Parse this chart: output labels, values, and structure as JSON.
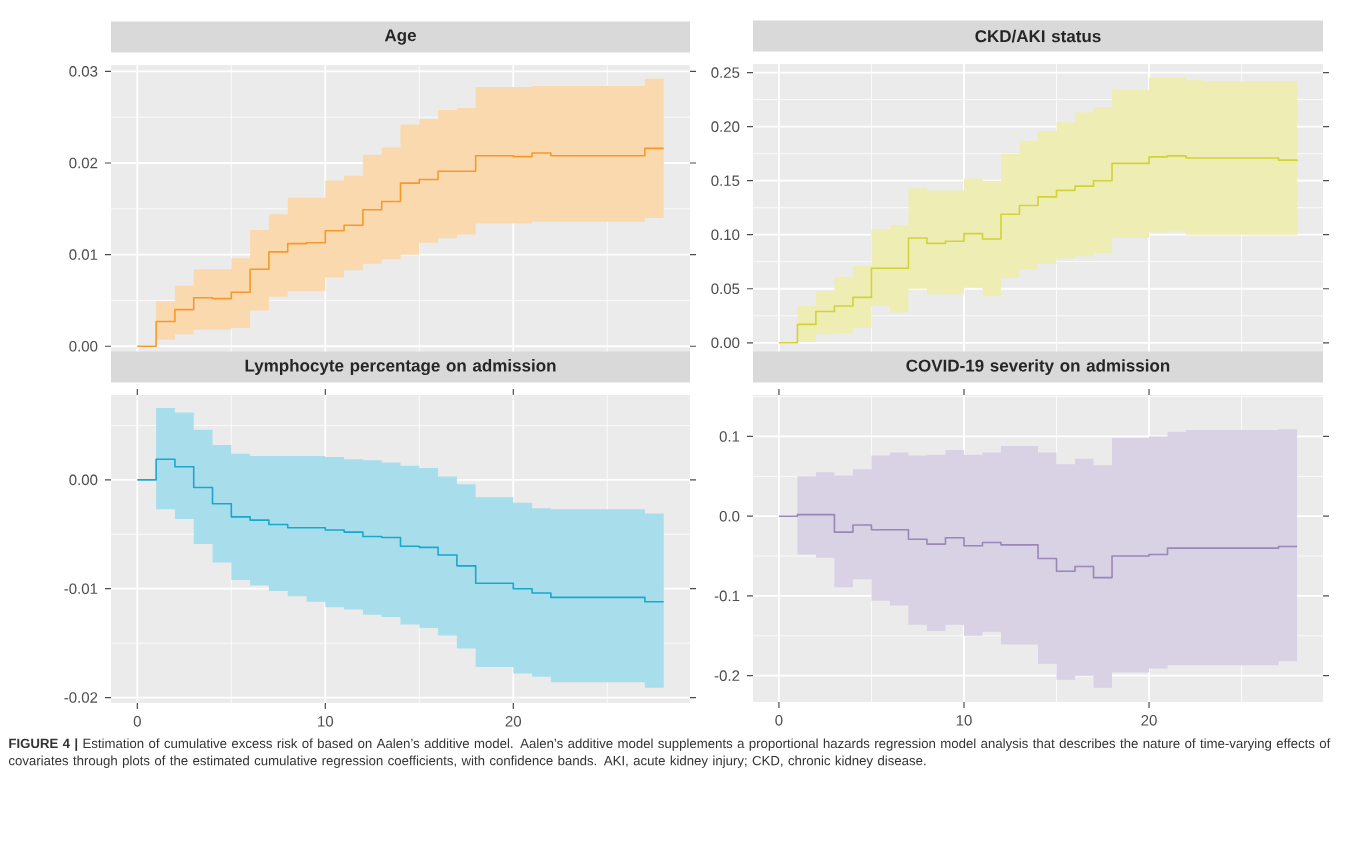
{
  "chart_data": [
    {
      "type": "step",
      "title": "Age",
      "x": [
        0,
        1,
        2,
        3,
        4,
        5,
        6,
        7,
        8,
        9,
        10,
        11,
        12,
        13,
        14,
        15,
        16,
        17,
        18,
        19,
        20,
        21,
        22,
        23,
        24,
        25,
        26,
        27,
        28
      ],
      "series": [
        {
          "color": "#f59a2a",
          "values": [
            0,
            0.0027,
            0.004,
            0.0053,
            0.0052,
            0.0059,
            0.0084,
            0.0103,
            0.0112,
            0.0113,
            0.0126,
            0.0132,
            0.0149,
            0.0158,
            0.0178,
            0.0182,
            0.0191,
            0.0191,
            0.0208,
            0.0208,
            0.0207,
            0.0211,
            0.0208,
            0.0208,
            0.0208,
            0.0208,
            0.0208,
            0.0216,
            0.0216
          ],
          "upper": [
            0,
            0.0049,
            0.0066,
            0.0084,
            0.0084,
            0.0096,
            0.0127,
            0.0144,
            0.0162,
            0.0162,
            0.0181,
            0.0186,
            0.0209,
            0.0217,
            0.0242,
            0.0248,
            0.0258,
            0.026,
            0.0283,
            0.0283,
            0.0283,
            0.0284,
            0.0284,
            0.0284,
            0.0284,
            0.0284,
            0.0284,
            0.0292,
            0.0292
          ],
          "lower": [
            0,
            0.0007,
            0.0013,
            0.0018,
            0.0018,
            0.002,
            0.0039,
            0.0054,
            0.006,
            0.006,
            0.0075,
            0.0083,
            0.009,
            0.0095,
            0.01,
            0.0113,
            0.0118,
            0.0122,
            0.0134,
            0.0134,
            0.0134,
            0.0136,
            0.0136,
            0.0136,
            0.0136,
            0.0136,
            0.0136,
            0.014,
            0.014
          ]
        }
      ],
      "xlim": [
        -1.4,
        29.4
      ],
      "xticks": [
        0,
        10,
        20
      ],
      "ylim": [
        -0.0015,
        0.0307
      ],
      "yticks": [
        {
          "value": 0,
          "label": "0.00"
        },
        {
          "value": 0.01,
          "label": "0.01"
        },
        {
          "value": 0.02,
          "label": "0.02"
        },
        {
          "value": 0.03,
          "label": "0.03"
        }
      ],
      "tick_labels": "y",
      "grid": true
    },
    {
      "type": "step",
      "title": "CKD/AKI status",
      "x": [
        0,
        1,
        2,
        3,
        4,
        5,
        6,
        7,
        8,
        9,
        10,
        11,
        12,
        13,
        14,
        15,
        16,
        17,
        18,
        19,
        20,
        21,
        22,
        23,
        24,
        25,
        26,
        27,
        28
      ],
      "series": [
        {
          "color": "#d2d23a",
          "values": [
            0,
            0.017,
            0.029,
            0.034,
            0.042,
            0.069,
            0.069,
            0.097,
            0.092,
            0.094,
            0.101,
            0.096,
            0.119,
            0.127,
            0.135,
            0.141,
            0.145,
            0.15,
            0.166,
            0.166,
            0.172,
            0.173,
            0.171,
            0.171,
            0.171,
            0.171,
            0.171,
            0.169,
            0.168
          ],
          "upper": [
            0,
            0.034,
            0.048,
            0.061,
            0.071,
            0.105,
            0.109,
            0.143,
            0.141,
            0.141,
            0.152,
            0.15,
            0.175,
            0.187,
            0.196,
            0.204,
            0.213,
            0.218,
            0.234,
            0.234,
            0.245,
            0.245,
            0.243,
            0.242,
            0.242,
            0.242,
            0.242,
            0.242,
            0.242
          ],
          "lower": [
            0,
            0.001,
            0.008,
            0.009,
            0.014,
            0.034,
            0.028,
            0.05,
            0.045,
            0.045,
            0.051,
            0.043,
            0.06,
            0.068,
            0.073,
            0.078,
            0.08,
            0.083,
            0.097,
            0.097,
            0.102,
            0.103,
            0.1,
            0.1,
            0.1,
            0.1,
            0.1,
            0.1,
            0.1
          ]
        }
      ],
      "xlim": [
        -1.4,
        29.4
      ],
      "xticks": [
        0,
        10,
        20
      ],
      "ylim": [
        -0.015,
        0.258
      ],
      "yticks": [
        {
          "value": 0,
          "label": "0.00"
        },
        {
          "value": 0.05,
          "label": "0.05"
        },
        {
          "value": 0.1,
          "label": "0.10"
        },
        {
          "value": 0.15,
          "label": "0.15"
        },
        {
          "value": 0.2,
          "label": "0.20"
        },
        {
          "value": 0.25,
          "label": "0.25"
        }
      ],
      "tick_labels": "y",
      "grid": true
    },
    {
      "type": "step",
      "title": "Lymphocyte percentage on admission",
      "x": [
        0,
        1,
        2,
        3,
        4,
        5,
        6,
        7,
        8,
        9,
        10,
        11,
        12,
        13,
        14,
        15,
        16,
        17,
        18,
        19,
        20,
        21,
        22,
        23,
        24,
        25,
        26,
        27,
        28
      ],
      "series": [
        {
          "color": "#1aa7cc",
          "values": [
            0,
            0.0019,
            0.0012,
            -0.0007,
            -0.0022,
            -0.0034,
            -0.0037,
            -0.0041,
            -0.0044,
            -0.0044,
            -0.0046,
            -0.0048,
            -0.0052,
            -0.0053,
            -0.0061,
            -0.0062,
            -0.0069,
            -0.0079,
            -0.0095,
            -0.0095,
            -0.01,
            -0.0104,
            -0.0108,
            -0.0108,
            -0.0108,
            -0.0108,
            -0.0108,
            -0.0112,
            -0.0112
          ],
          "upper": [
            0,
            0.0066,
            0.0062,
            0.0046,
            0.0032,
            0.0024,
            0.0022,
            0.0022,
            0.0022,
            0.0022,
            0.0021,
            0.0019,
            0.0018,
            0.0016,
            0.0013,
            0.0011,
            0.0003,
            -0.0004,
            -0.0016,
            -0.0016,
            -0.0021,
            -0.0026,
            -0.0027,
            -0.0027,
            -0.0027,
            -0.0027,
            -0.0027,
            -0.0031,
            -0.0031
          ],
          "lower": [
            0,
            -0.0027,
            -0.0036,
            -0.0059,
            -0.0076,
            -0.0092,
            -0.0097,
            -0.0102,
            -0.0107,
            -0.0112,
            -0.0117,
            -0.0119,
            -0.0124,
            -0.0126,
            -0.0133,
            -0.0136,
            -0.0143,
            -0.0155,
            -0.0172,
            -0.0172,
            -0.0178,
            -0.0181,
            -0.0186,
            -0.0186,
            -0.0186,
            -0.0186,
            -0.0186,
            -0.0191,
            -0.0191
          ]
        }
      ],
      "xlim": [
        -1.4,
        29.4
      ],
      "xticks": [
        0,
        10,
        20
      ],
      "ylim": [
        -0.0205,
        0.0078
      ],
      "yticks": [
        {
          "value": -0.02,
          "label": "-0.02"
        },
        {
          "value": -0.01,
          "label": "-0.01"
        },
        {
          "value": 0,
          "label": "0.00"
        }
      ],
      "grid": true
    },
    {
      "type": "step",
      "title": "COVID-19 severity on admission",
      "x": [
        0,
        1,
        2,
        3,
        4,
        5,
        6,
        7,
        8,
        9,
        10,
        11,
        12,
        13,
        14,
        15,
        16,
        17,
        18,
        19,
        20,
        21,
        22,
        23,
        24,
        25,
        26,
        27,
        28
      ],
      "series": [
        {
          "color": "#9a86b8",
          "values": [
            0,
            0.002,
            0.002,
            -0.02,
            -0.011,
            -0.017,
            -0.017,
            -0.029,
            -0.035,
            -0.027,
            -0.037,
            -0.033,
            -0.036,
            -0.036,
            -0.053,
            -0.069,
            -0.063,
            -0.077,
            -0.05,
            -0.05,
            -0.048,
            -0.04,
            -0.04,
            -0.04,
            -0.04,
            -0.04,
            -0.04,
            -0.038,
            -0.038
          ],
          "upper": [
            0,
            0.05,
            0.055,
            0.051,
            0.059,
            0.076,
            0.08,
            0.076,
            0.077,
            0.083,
            0.077,
            0.08,
            0.088,
            0.088,
            0.08,
            0.065,
            0.072,
            0.064,
            0.098,
            0.098,
            0.1,
            0.106,
            0.108,
            0.108,
            0.108,
            0.108,
            0.108,
            0.109,
            0.109
          ],
          "lower": [
            0,
            -0.048,
            -0.052,
            -0.089,
            -0.079,
            -0.106,
            -0.112,
            -0.136,
            -0.144,
            -0.136,
            -0.15,
            -0.145,
            -0.161,
            -0.161,
            -0.185,
            -0.205,
            -0.2,
            -0.215,
            -0.196,
            -0.196,
            -0.191,
            -0.187,
            -0.187,
            -0.187,
            -0.187,
            -0.187,
            -0.187,
            -0.182,
            -0.182
          ]
        }
      ],
      "xlim": [
        -1.4,
        29.4
      ],
      "xticks": [
        0,
        10,
        20
      ],
      "ylim": [
        -0.233,
        0.152
      ],
      "yticks": [
        {
          "value": -0.2,
          "label": "-0.2"
        },
        {
          "value": -0.1,
          "label": "-0.1"
        },
        {
          "value": 0,
          "label": "0.0"
        },
        {
          "value": 0.1,
          "label": "0.1"
        }
      ],
      "grid": true,
      "annotations": [
        "**FIGURE 4 |** Estimation of cumulative excess risk of based on Aalen’s additive model. Aalen’s additive model supplements a proportional hazards regression model analysis that describes the nature of time-varying effects of covariates through plots of the estimated cumulative regression coefficients, with confidence bands. AKI, acute kidney injury; CKD, chronic kidney disease."
      ]
    }
  ]
}
